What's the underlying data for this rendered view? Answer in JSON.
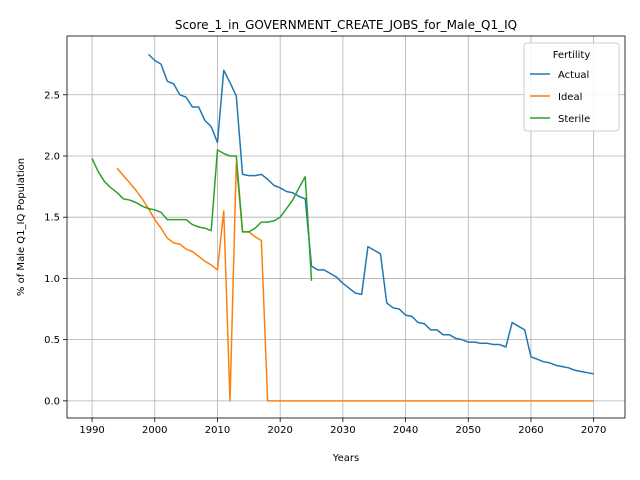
{
  "chart_data": {
    "type": "line",
    "title": "Score_1_in_GOVERNMENT_CREATE_JOBS_for_Male_Q1_IQ",
    "xlabel": "Years",
    "ylabel": "% of Male Q1_IQ Population",
    "xlim": [
      1986,
      2075
    ],
    "ylim": [
      -0.14,
      2.98
    ],
    "xticks": [
      1990,
      2000,
      2010,
      2020,
      2030,
      2040,
      2050,
      2060,
      2070
    ],
    "yticks": [
      0.0,
      0.5,
      1.0,
      1.5,
      2.0,
      2.5
    ],
    "ytick_labels": [
      "0.0",
      "0.5",
      "1.0",
      "1.5",
      "2.0",
      "2.5"
    ],
    "grid": true,
    "legend": {
      "title": "Fertility",
      "position": "top-right"
    },
    "series": [
      {
        "name": "Actual",
        "color": "#1f77b4",
        "points": [
          [
            1999,
            2.83
          ],
          [
            2000,
            2.78
          ],
          [
            2001,
            2.75
          ],
          [
            2002,
            2.61
          ],
          [
            2003,
            2.59
          ],
          [
            2004,
            2.5
          ],
          [
            2005,
            2.48
          ],
          [
            2006,
            2.4
          ],
          [
            2007,
            2.4
          ],
          [
            2008,
            2.29
          ],
          [
            2009,
            2.24
          ],
          [
            2010,
            2.11
          ],
          [
            2011,
            2.7
          ],
          [
            2012,
            2.6
          ],
          [
            2013,
            2.49
          ],
          [
            2014,
            1.85
          ],
          [
            2015,
            1.84
          ],
          [
            2016,
            1.84
          ],
          [
            2017,
            1.85
          ],
          [
            2018,
            1.81
          ],
          [
            2019,
            1.76
          ],
          [
            2020,
            1.74
          ],
          [
            2021,
            1.71
          ],
          [
            2022,
            1.7
          ],
          [
            2023,
            1.67
          ],
          [
            2024,
            1.65
          ],
          [
            2025,
            1.1
          ],
          [
            2026,
            1.07
          ],
          [
            2027,
            1.07
          ],
          [
            2028,
            1.04
          ],
          [
            2029,
            1.01
          ],
          [
            2030,
            0.96
          ],
          [
            2031,
            0.92
          ],
          [
            2032,
            0.88
          ],
          [
            2033,
            0.87
          ],
          [
            2034,
            1.26
          ],
          [
            2035,
            1.23
          ],
          [
            2036,
            1.2
          ],
          [
            2037,
            0.8
          ],
          [
            2038,
            0.76
          ],
          [
            2039,
            0.75
          ],
          [
            2040,
            0.7
          ],
          [
            2041,
            0.69
          ],
          [
            2042,
            0.64
          ],
          [
            2043,
            0.63
          ],
          [
            2044,
            0.58
          ],
          [
            2045,
            0.58
          ],
          [
            2046,
            0.54
          ],
          [
            2047,
            0.54
          ],
          [
            2048,
            0.51
          ],
          [
            2049,
            0.5
          ],
          [
            2050,
            0.48
          ],
          [
            2051,
            0.48
          ],
          [
            2052,
            0.47
          ],
          [
            2053,
            0.47
          ],
          [
            2054,
            0.46
          ],
          [
            2055,
            0.46
          ],
          [
            2056,
            0.44
          ],
          [
            2057,
            0.64
          ],
          [
            2058,
            0.61
          ],
          [
            2059,
            0.58
          ],
          [
            2060,
            0.36
          ],
          [
            2061,
            0.34
          ],
          [
            2062,
            0.32
          ],
          [
            2063,
            0.31
          ],
          [
            2064,
            0.29
          ],
          [
            2065,
            0.28
          ],
          [
            2066,
            0.27
          ],
          [
            2067,
            0.25
          ],
          [
            2068,
            0.24
          ],
          [
            2069,
            0.23
          ],
          [
            2070,
            0.22
          ]
        ]
      },
      {
        "name": "Ideal",
        "color": "#ff7f0e",
        "points": [
          [
            1994,
            1.9
          ],
          [
            1995,
            1.84
          ],
          [
            1996,
            1.78
          ],
          [
            1997,
            1.72
          ],
          [
            1998,
            1.65
          ],
          [
            1999,
            1.57
          ],
          [
            2000,
            1.48
          ],
          [
            2001,
            1.41
          ],
          [
            2002,
            1.33
          ],
          [
            2003,
            1.29
          ],
          [
            2004,
            1.28
          ],
          [
            2005,
            1.24
          ],
          [
            2006,
            1.22
          ],
          [
            2007,
            1.18
          ],
          [
            2008,
            1.14
          ],
          [
            2009,
            1.11
          ],
          [
            2010,
            1.07
          ],
          [
            2011,
            1.55
          ],
          [
            2012,
            0.0
          ],
          [
            2013,
            1.94
          ],
          [
            2014,
            1.38
          ],
          [
            2015,
            1.38
          ],
          [
            2016,
            1.34
          ],
          [
            2017,
            1.31
          ],
          [
            2018,
            0.0
          ],
          [
            2070,
            0.0
          ]
        ]
      },
      {
        "name": "Sterile",
        "color": "#2ca02c",
        "points": [
          [
            1990,
            1.98
          ],
          [
            1991,
            1.87
          ],
          [
            1992,
            1.79
          ],
          [
            1993,
            1.74
          ],
          [
            1994,
            1.7
          ],
          [
            1995,
            1.65
          ],
          [
            1996,
            1.64
          ],
          [
            1997,
            1.62
          ],
          [
            1998,
            1.59
          ],
          [
            1999,
            1.57
          ],
          [
            2000,
            1.56
          ],
          [
            2001,
            1.54
          ],
          [
            2002,
            1.48
          ],
          [
            2003,
            1.48
          ],
          [
            2004,
            1.48
          ],
          [
            2005,
            1.48
          ],
          [
            2006,
            1.44
          ],
          [
            2007,
            1.42
          ],
          [
            2008,
            1.41
          ],
          [
            2009,
            1.39
          ],
          [
            2010,
            2.05
          ],
          [
            2011,
            2.02
          ],
          [
            2012,
            2.0
          ],
          [
            2013,
            2.0
          ],
          [
            2014,
            1.38
          ],
          [
            2015,
            1.38
          ],
          [
            2016,
            1.41
          ],
          [
            2017,
            1.46
          ],
          [
            2018,
            1.46
          ],
          [
            2019,
            1.47
          ],
          [
            2020,
            1.5
          ],
          [
            2021,
            1.57
          ],
          [
            2022,
            1.64
          ],
          [
            2023,
            1.74
          ],
          [
            2024,
            1.83
          ],
          [
            2025,
            0.98
          ]
        ]
      }
    ]
  }
}
